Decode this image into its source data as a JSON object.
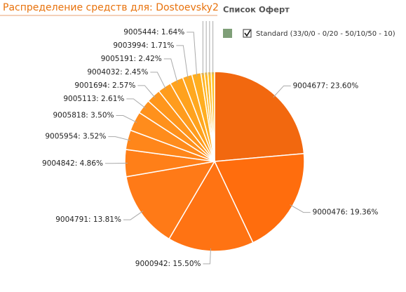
{
  "chart_data": {
    "type": "pie",
    "title": "Распределение средств для: Dostoevsky2",
    "legend_title": "Список Оферт",
    "series": [
      {
        "name": "Standard (33/0/0 - 0/20 - 50/10/50 - 10)",
        "color": "#7f9f78"
      }
    ],
    "values": [
      23.6,
      19.36,
      15.5,
      13.81,
      4.86,
      3.52,
      3.5,
      2.61,
      2.57,
      2.45,
      2.42,
      1.71,
      1.64,
      0.62,
      0.61,
      0.61,
      0.61
    ],
    "value_labels": [
      "9004677: 23.60%",
      "9000476: 19.36%",
      "9000942: 15.50%",
      "9004791: 13.81%",
      "9004842: 4.86%",
      "9005954: 3.52%",
      "9005818: 3.50%",
      "9005113: 2.61%",
      "9001694: 2.57%",
      "9004032: 2.45%",
      "9005191: 2.42%",
      "9003994: 1.71%",
      "9005444: 1.64%",
      null,
      null,
      null,
      null
    ],
    "colors": [
      "#f2680f",
      "#ff6d0d",
      "#ff7313",
      "#ff7a17",
      "#ff7f18",
      "#ff861a",
      "#ff8c1c",
      "#ff911c",
      "#ff961c",
      "#ff9c1d",
      "#ffa21d",
      "#ffa81f",
      "#ffae20",
      "#ffb422",
      "#ffb823",
      "#ffbd25",
      "#ffc126"
    ]
  }
}
